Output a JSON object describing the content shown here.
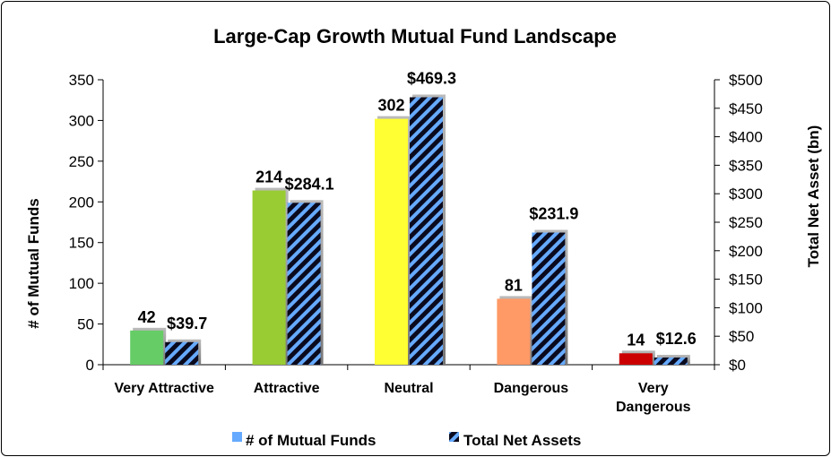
{
  "chart_data": {
    "type": "bar",
    "title": "Large-Cap Growth Mutual Fund Landscape",
    "categories": [
      "Very Attractive",
      "Attractive",
      "Neutral",
      "Dangerous",
      "Very Dangerous"
    ],
    "series": [
      {
        "name": "# of Mutual Funds",
        "axis": "left",
        "values": [
          42,
          214,
          302,
          81,
          14
        ],
        "labels": [
          "42",
          "214",
          "302",
          "81",
          "14"
        ],
        "colors": [
          "#66cc66",
          "#99cc33",
          "#ffff33",
          "#ff9966",
          "#cc0000"
        ]
      },
      {
        "name": "Total Net Assets",
        "axis": "right",
        "values": [
          39.7,
          284.1,
          469.3,
          231.9,
          12.6
        ],
        "labels": [
          "$39.7",
          "$284.1",
          "$469.3",
          "$231.9",
          "$12.6"
        ],
        "pattern": "blue-black diagonal stripes"
      }
    ],
    "ylabel": "# of Mutual Funds",
    "y2label": "Total Net Asset (bn)",
    "ylim": [
      0,
      350
    ],
    "y2lim": [
      0,
      500
    ],
    "yticks": [
      "0",
      "50",
      "100",
      "150",
      "200",
      "250",
      "300",
      "350"
    ],
    "y2ticks": [
      "$0",
      "$50",
      "$100",
      "$150",
      "$200",
      "$250",
      "$300",
      "$350",
      "$400",
      "$450",
      "$500"
    ],
    "grid": false,
    "legend_position": "bottom"
  },
  "colors": {
    "stripe_blue": "#66aaff",
    "stripe_dark": "#0a0a1e",
    "legend_funds": "#66aaff"
  }
}
